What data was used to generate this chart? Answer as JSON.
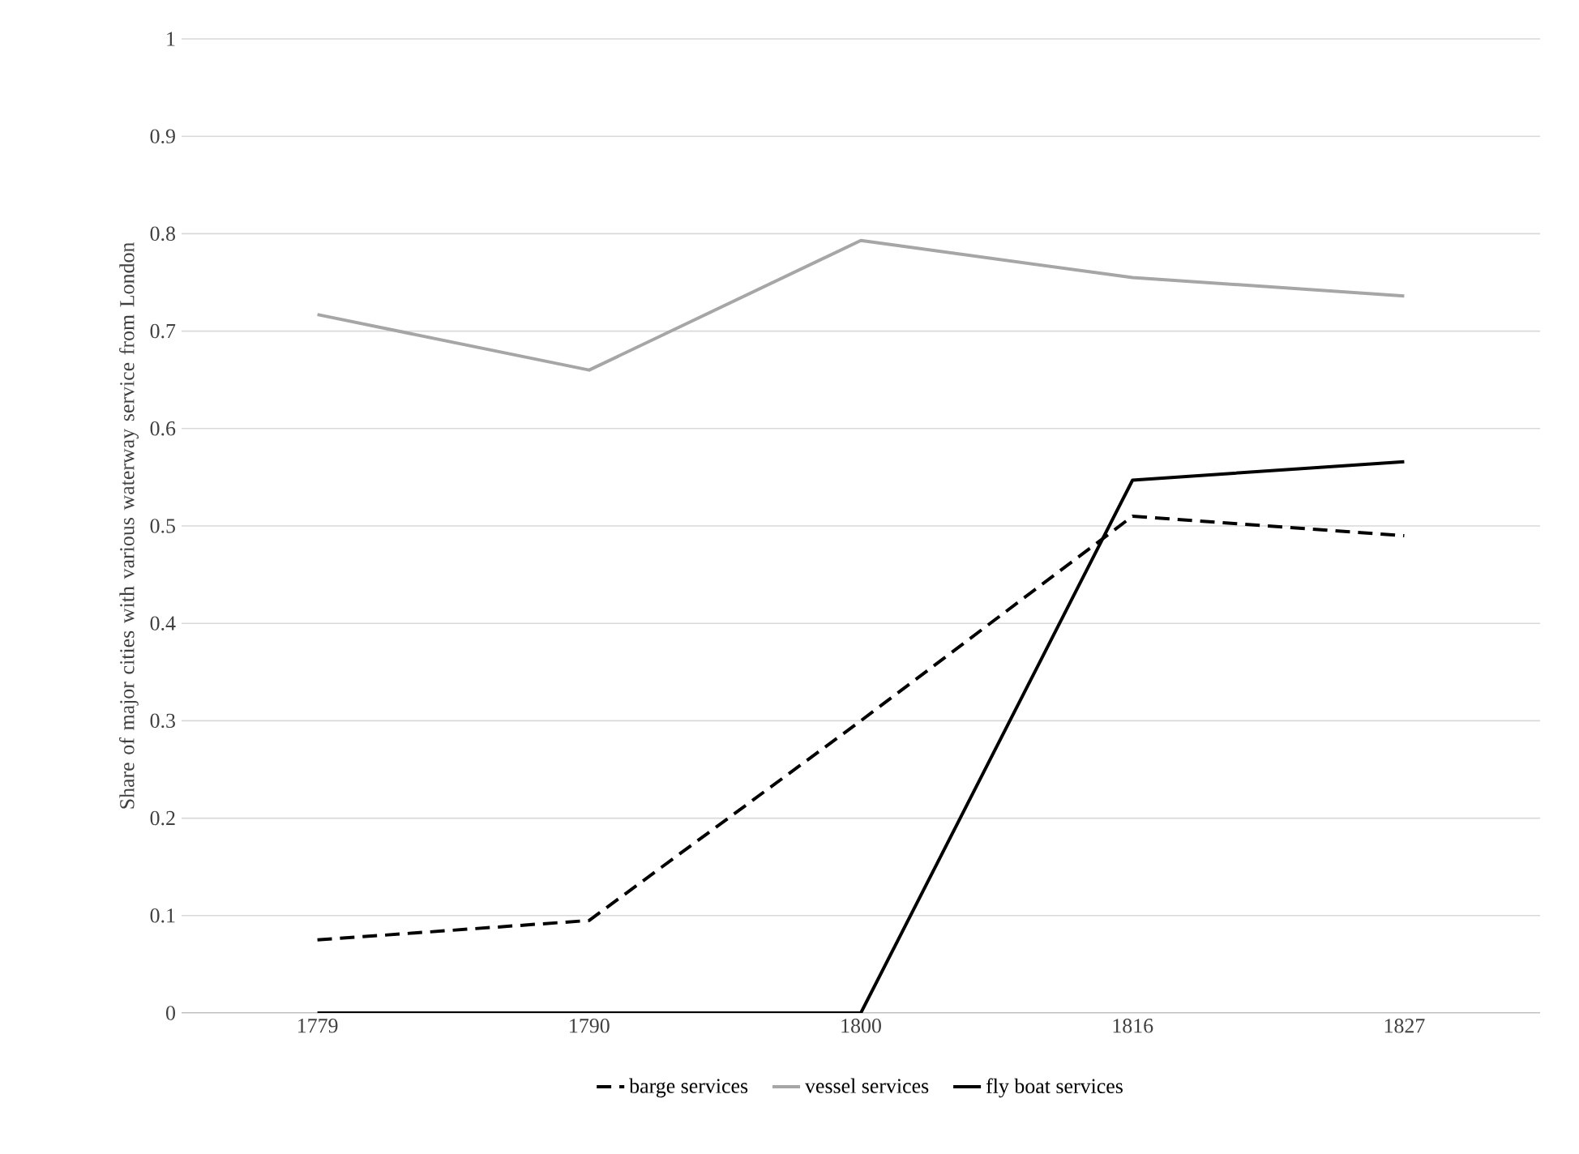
{
  "chart_data": {
    "type": "line",
    "ylabel": "Share of major cities with various waterway service from London",
    "categories": [
      "1779",
      "1790",
      "1800",
      "1816",
      "1827"
    ],
    "series": [
      {
        "name": "barge services",
        "color": "#000000",
        "line_style": "dashed",
        "values": [
          0.075,
          0.095,
          0.3,
          0.51,
          0.49
        ]
      },
      {
        "name": "vessel services",
        "color": "#a6a6a6",
        "line_style": "solid",
        "values": [
          0.717,
          0.66,
          0.793,
          0.755,
          0.736
        ]
      },
      {
        "name": "fly boat services",
        "color": "#000000",
        "line_style": "solid",
        "values": [
          0,
          0,
          0,
          0.547,
          0.566
        ]
      }
    ],
    "ylim": [
      0,
      1
    ],
    "yticks": [
      0,
      0.1,
      0.2,
      0.3,
      0.4,
      0.5,
      0.6,
      0.7,
      0.8,
      0.9,
      1
    ],
    "grid": "y",
    "legend": "bottom",
    "marker": "none"
  }
}
